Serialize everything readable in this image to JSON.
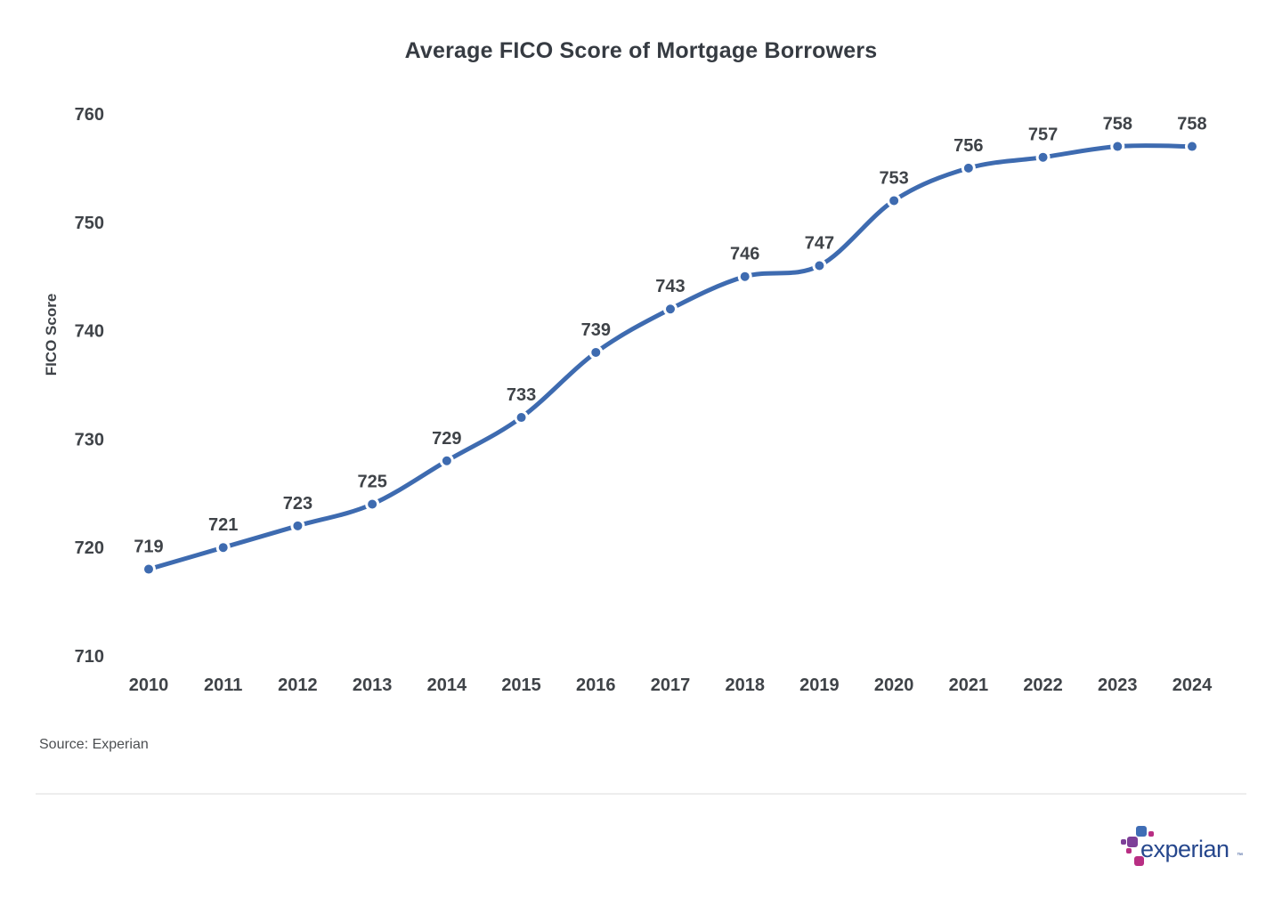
{
  "chart_data": {
    "type": "line",
    "title": "Average FICO Score of Mortgage Borrowers",
    "categories": [
      "2010",
      "2011",
      "2012",
      "2013",
      "2014",
      "2015",
      "2016",
      "2017",
      "2018",
      "2019",
      "2020",
      "2021",
      "2022",
      "2023",
      "2024"
    ],
    "values": [
      719,
      721,
      723,
      725,
      729,
      733,
      739,
      743,
      746,
      747,
      753,
      756,
      757,
      758,
      758
    ],
    "xlabel": "",
    "ylabel": "FICO Score",
    "yticks": [
      710,
      720,
      730,
      740,
      750,
      760
    ],
    "ylim": [
      710,
      760
    ],
    "grid": false,
    "legend": false,
    "data_labels": true,
    "source": "Source: Experian",
    "line_color": "#3e6bb0",
    "marker_color": "#3e6bb0",
    "marker_ring_color": "#ffffff",
    "text_color": "#3f4348",
    "title_color": "#363b42",
    "plot_offset": -1
  },
  "logo": {
    "wordmark": "experian",
    "trademark": "™",
    "wordmark_color": "#26478d",
    "block_colors": {
      "blue": "#3f6db5",
      "purple": "#7d3f98",
      "magenta": "#b82e83"
    }
  }
}
